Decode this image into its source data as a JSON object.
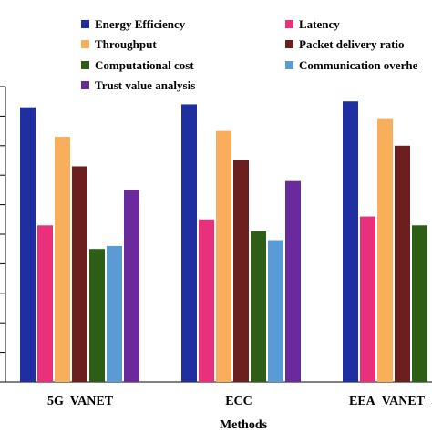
{
  "chart_data": {
    "type": "bar",
    "title": "",
    "xlabel": "Methods",
    "ylabel": "",
    "categories": [
      "5G_VANET",
      "ECC",
      "EEA_VANET_"
    ],
    "ylim": [
      0,
      100
    ],
    "legend_position": "top",
    "grid": false,
    "series": [
      {
        "name": "Energy Efficiency",
        "color": "#1f2ea1",
        "values": [
          93,
          94,
          95
        ]
      },
      {
        "name": "Latency",
        "color": "#e8317a",
        "values": [
          53,
          55,
          56
        ]
      },
      {
        "name": "Throughput",
        "color": "#f9ae5b",
        "values": [
          83,
          85,
          89
        ]
      },
      {
        "name": "Packet delivery ratio",
        "color": "#6b1f1f",
        "values": [
          73,
          75,
          80
        ]
      },
      {
        "name": "Computational cost",
        "color": "#2e5e15",
        "values": [
          45,
          51,
          53
        ]
      },
      {
        "name": "Communication overhe",
        "color": "#5b9bd5",
        "values": [
          46,
          48,
          null
        ]
      },
      {
        "name": "Trust value analysis",
        "color": "#6a2a9c",
        "values": [
          65,
          68,
          null
        ]
      }
    ]
  }
}
